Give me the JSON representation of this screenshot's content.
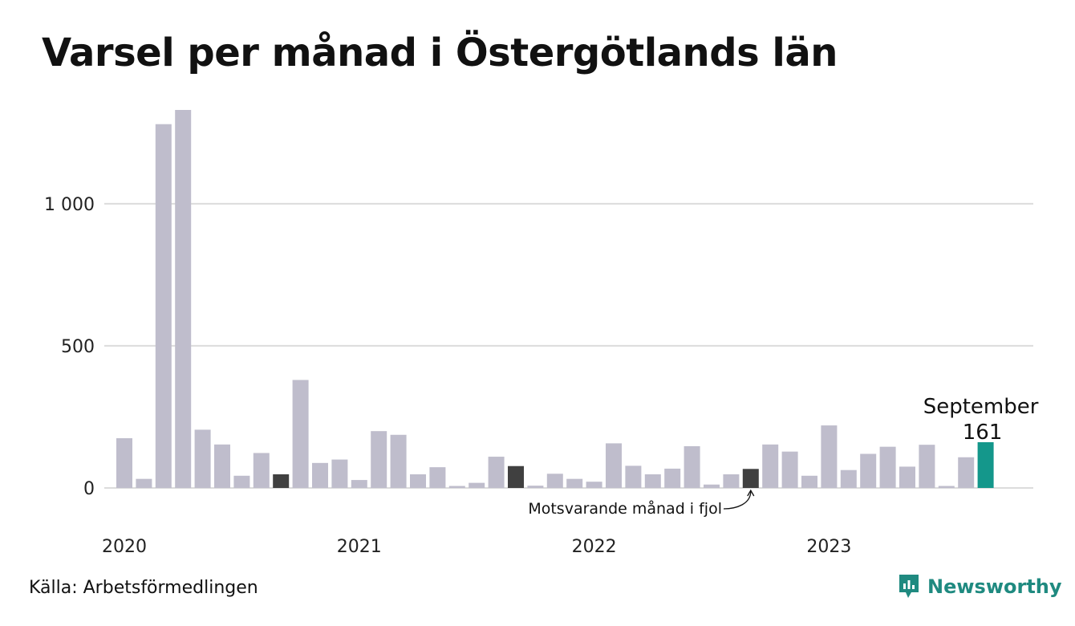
{
  "title": "Varsel per månad i Östergötlands län",
  "source": "Källa: Arbetsförmedlingen",
  "brand": "Newsworthy",
  "colors": {
    "bar": "#bfbdcc",
    "comparison_bar": "#404040",
    "highlight_bar": "#14978b",
    "grid": "#dcdcdc",
    "brand": "#1f8a80"
  },
  "chart_data": {
    "type": "bar",
    "ylim": [
      0,
      1330
    ],
    "yticks": [
      0,
      500,
      1000
    ],
    "ytick_labels": [
      "0",
      "500",
      "1 000"
    ],
    "year_labels": [
      {
        "index": 0,
        "label": "2020"
      },
      {
        "index": 12,
        "label": "2021"
      },
      {
        "index": 24,
        "label": "2022"
      },
      {
        "index": 36,
        "label": "2023"
      }
    ],
    "values": [
      175,
      32,
      1280,
      1330,
      205,
      153,
      43,
      123,
      48,
      380,
      88,
      100,
      28,
      200,
      187,
      48,
      73,
      7,
      18,
      110,
      77,
      8,
      50,
      32,
      22,
      157,
      78,
      48,
      68,
      147,
      12,
      48,
      67,
      153,
      128,
      43,
      220,
      63,
      120,
      145,
      75,
      152,
      7,
      108,
      161
    ],
    "comparison_indices": [
      8,
      20,
      32
    ],
    "highlight_index": 44,
    "highlight_label": "September",
    "highlight_value_label": "161",
    "annotation": "Motsvarande månad i fjol"
  }
}
